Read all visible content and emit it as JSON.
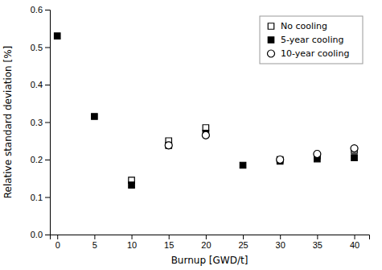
{
  "chart_data": {
    "type": "scatter",
    "x": [
      0,
      5,
      10,
      15,
      20,
      25,
      30,
      35,
      40
    ],
    "series": [
      {
        "name": "No cooling",
        "color": "#000000",
        "marker": "open-square",
        "values": [
          null,
          null,
          0.145,
          0.25,
          0.285,
          null,
          0.2,
          0.21,
          0.225
        ]
      },
      {
        "name": "5-year cooling",
        "color": "#000000",
        "marker": "square",
        "values": [
          0.53,
          0.315,
          0.132,
          0.238,
          0.27,
          0.185,
          0.196,
          0.202,
          0.205
        ]
      },
      {
        "name": "10-year cooling",
        "color": "#000000",
        "marker": "open-circle",
        "values": [
          null,
          null,
          null,
          0.238,
          0.265,
          null,
          0.2,
          0.215,
          0.23
        ]
      }
    ],
    "xlabel": "Burnup [GWD/t]",
    "ylabel": "Relative standard deviation [%]",
    "xlim": [
      -1,
      42
    ],
    "ylim": [
      0.0,
      0.6
    ],
    "xticks": [
      0,
      5,
      10,
      15,
      20,
      25,
      30,
      35,
      40
    ],
    "yticks": [
      {
        "value": 0,
        "label": "0.0"
      },
      0.1,
      0.2,
      0.3,
      0.4,
      0.5,
      0.6
    ],
    "legend": "upper right",
    "grid": false
  }
}
